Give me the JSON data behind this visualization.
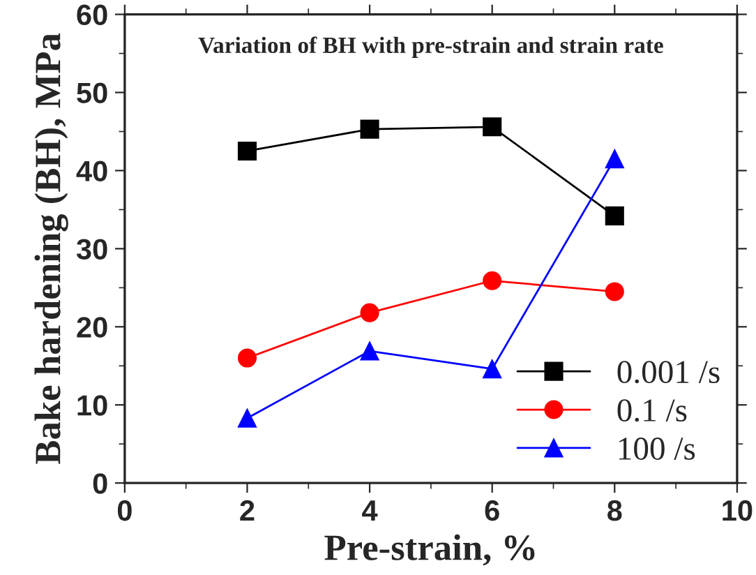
{
  "chart_data": {
    "type": "line",
    "title": "Variation of BH with pre-strain and strain rate",
    "xlabel": "Pre-strain, %",
    "ylabel": "Bake hardening (BH), MPa",
    "x": [
      2,
      4,
      6,
      8
    ],
    "series": [
      {
        "name": "0.001 /s",
        "color": "#000000",
        "marker": "square",
        "values": [
          42.5,
          45.3,
          45.6,
          34.2
        ]
      },
      {
        "name": "0.1 /s",
        "color": "#ff0000",
        "marker": "circle",
        "values": [
          16.0,
          21.8,
          25.9,
          24.5
        ]
      },
      {
        "name": "100 /s",
        "color": "#0000ff",
        "marker": "triangle",
        "values": [
          8.3,
          16.9,
          14.6,
          41.5
        ]
      }
    ],
    "xlim": [
      0,
      10
    ],
    "xticks": [
      0,
      2,
      4,
      6,
      8,
      10
    ],
    "ylim": [
      0,
      60
    ],
    "yticks": [
      0,
      10,
      20,
      30,
      40,
      50,
      60
    ],
    "grid": false,
    "legend": "bottom right",
    "line_style": "solid"
  }
}
